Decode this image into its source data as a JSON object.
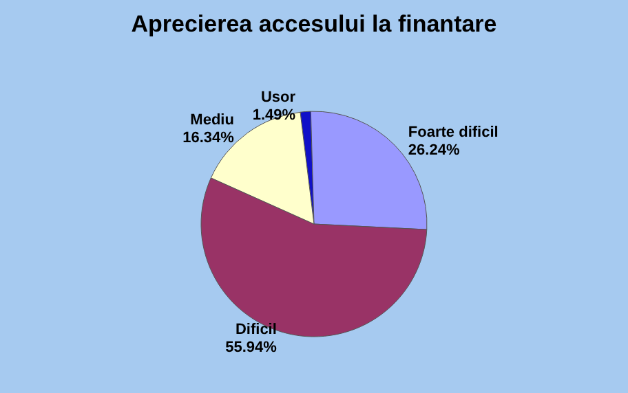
{
  "chart_data": {
    "type": "pie",
    "title": "Aprecierea accesului la finantare",
    "categories": [
      "Usor",
      "Foarte dificil",
      "Dificil",
      "Mediu"
    ],
    "values": [
      1.49,
      26.24,
      55.94,
      16.34
    ],
    "value_labels": [
      "1.49%",
      "26.24%",
      "55.94%",
      "16.34%"
    ],
    "colors": [
      "#1010c8",
      "#9999ff",
      "#993366",
      "#ffffcc"
    ],
    "legend": false
  }
}
